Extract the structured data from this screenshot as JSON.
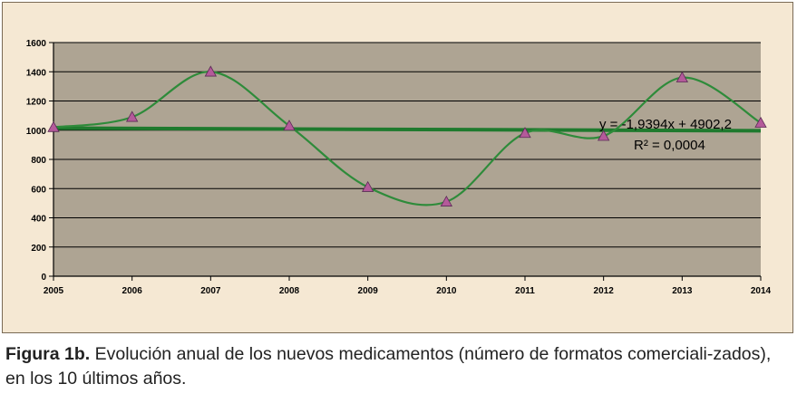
{
  "chart_data": {
    "type": "line",
    "title": "",
    "xlabel": "",
    "ylabel": "",
    "x": [
      "2005",
      "2006",
      "2007",
      "2008",
      "2009",
      "2010",
      "2011",
      "2012",
      "2013",
      "2014"
    ],
    "values": [
      1020,
      1090,
      1400,
      1030,
      610,
      510,
      980,
      960,
      1360,
      1050
    ],
    "ylim": [
      0,
      1600
    ],
    "yticks": [
      "0",
      "200",
      "400",
      "600",
      "800",
      "1000",
      "1200",
      "1400",
      "1600"
    ],
    "grid": true,
    "trendline": {
      "equation": "y = -1,9394x + 4902,2",
      "r_squared": "R² = 0,0004",
      "slope": -1.9394,
      "intercept": 4902.2
    },
    "colors": {
      "plot_background": "#aea493",
      "chart_background": "#f5e8d3",
      "series_line": "#2e8b3a",
      "trend_line": "#1f7a2e",
      "marker": "#b45a9a"
    }
  },
  "caption": {
    "label": "Figura 1b.",
    "text": " Evolución anual de los nuevos medicamentos (número de formatos comerciali-zados), en los 10 últimos años."
  }
}
